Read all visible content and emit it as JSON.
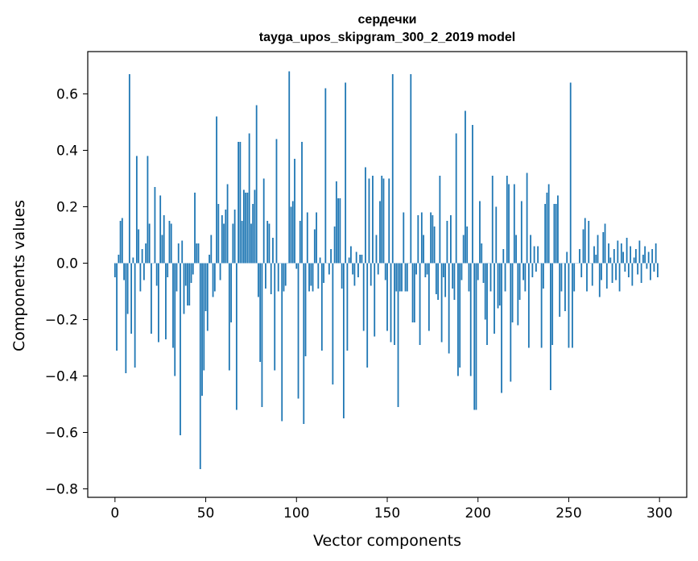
{
  "chart_data": {
    "type": "bar",
    "title": "сердечки",
    "subtitle": "tayga_upos_skipgram_300_2_2019 model",
    "xlabel": "Vector components",
    "ylabel": "Components values",
    "xlim": [
      -15,
      315
    ],
    "ylim": [
      -0.83,
      0.75
    ],
    "xticks": [
      0,
      50,
      100,
      150,
      200,
      250,
      300
    ],
    "yticks": [
      -0.8,
      -0.6,
      -0.4,
      -0.2,
      0.0,
      0.2,
      0.4,
      0.6
    ],
    "ytick_labels": [
      "−0.8",
      "−0.6",
      "−0.4",
      "−0.2",
      "0.0",
      "0.2",
      "0.4",
      "0.6"
    ],
    "xtick_labels": [
      "0",
      "50",
      "100",
      "150",
      "200",
      "250",
      "300"
    ],
    "bar_color": "#1f77b4",
    "grid": false,
    "categories_range": [
      0,
      299
    ],
    "values": [
      -0.05,
      -0.31,
      0.03,
      0.15,
      0.16,
      -0.06,
      -0.39,
      -0.18,
      0.67,
      -0.25,
      0.02,
      -0.37,
      0.38,
      0.12,
      -0.1,
      0.05,
      -0.06,
      0.07,
      0.38,
      0.14,
      -0.25,
      0.0,
      0.27,
      -0.08,
      -0.28,
      0.24,
      0.1,
      0.17,
      -0.27,
      -0.05,
      0.15,
      0.14,
      -0.3,
      -0.4,
      -0.1,
      0.07,
      -0.61,
      0.08,
      -0.18,
      -0.08,
      -0.15,
      -0.15,
      -0.07,
      -0.04,
      0.25,
      0.07,
      0.07,
      -0.73,
      -0.47,
      -0.38,
      -0.17,
      -0.24,
      0.03,
      0.1,
      -0.12,
      -0.1,
      0.52,
      0.21,
      -0.06,
      0.17,
      0.14,
      0.19,
      0.28,
      -0.38,
      -0.21,
      0.14,
      0.19,
      -0.52,
      0.43,
      0.43,
      0.15,
      0.26,
      0.25,
      0.25,
      0.46,
      0.14,
      0.21,
      0.26,
      0.56,
      -0.12,
      -0.35,
      -0.51,
      0.3,
      -0.09,
      0.15,
      0.14,
      -0.11,
      0.09,
      -0.38,
      0.44,
      -0.1,
      0.0,
      -0.56,
      -0.1,
      -0.08,
      0.0,
      0.68,
      0.2,
      0.22,
      0.37,
      -0.02,
      -0.48,
      0.15,
      0.43,
      -0.57,
      -0.33,
      0.18,
      -0.1,
      -0.08,
      -0.1,
      0.12,
      0.18,
      -0.09,
      0.02,
      -0.31,
      -0.07,
      0.62,
      0.0,
      -0.04,
      0.05,
      -0.43,
      0.13,
      0.29,
      0.23,
      0.23,
      -0.09,
      -0.55,
      0.64,
      -0.31,
      0.02,
      0.06,
      -0.04,
      -0.08,
      0.04,
      -0.05,
      0.03,
      0.03,
      -0.24,
      0.34,
      -0.37,
      0.3,
      -0.08,
      0.31,
      -0.26,
      0.1,
      -0.04,
      0.22,
      0.31,
      0.3,
      -0.06,
      -0.24,
      0.3,
      -0.28,
      0.67,
      -0.29,
      -0.1,
      -0.51,
      -0.1,
      -0.1,
      0.18,
      -0.1,
      -0.1,
      0.0,
      0.67,
      -0.21,
      -0.21,
      -0.04,
      0.17,
      -0.29,
      0.18,
      0.1,
      -0.05,
      -0.04,
      -0.24,
      0.18,
      0.17,
      0.13,
      -0.11,
      -0.13,
      0.31,
      -0.28,
      -0.05,
      -0.12,
      0.15,
      -0.32,
      0.17,
      -0.09,
      -0.13,
      0.46,
      -0.4,
      -0.37,
      -0.06,
      0.1,
      0.54,
      0.13,
      -0.1,
      -0.4,
      0.49,
      -0.52,
      -0.52,
      -0.06,
      0.22,
      0.07,
      -0.07,
      -0.2,
      -0.29,
      0.0,
      -0.1,
      0.31,
      -0.25,
      0.2,
      -0.16,
      -0.15,
      -0.46,
      0.05,
      -0.1,
      0.31,
      0.28,
      -0.42,
      -0.21,
      0.28,
      0.1,
      -0.22,
      -0.13,
      0.22,
      -0.06,
      -0.1,
      0.32,
      -0.3,
      0.1,
      -0.05,
      0.06,
      -0.03,
      0.06,
      0.0,
      -0.3,
      -0.09,
      0.21,
      0.25,
      0.28,
      -0.45,
      -0.29,
      0.21,
      0.21,
      0.24,
      -0.19,
      -0.1,
      0.0,
      -0.17,
      0.04,
      -0.3,
      0.64,
      -0.3,
      -0.1,
      0.0,
      0.0,
      0.05,
      -0.05,
      0.12,
      0.16,
      -0.1,
      0.15,
      0.0,
      -0.08,
      0.06,
      0.03,
      0.1,
      -0.12,
      -0.06,
      0.11,
      0.14,
      -0.09,
      0.07,
      0.02,
      -0.07,
      0.05,
      -0.06,
      0.08,
      -0.1,
      0.07,
      0.04,
      -0.03,
      0.09,
      -0.05,
      0.06,
      -0.08,
      0.02,
      0.05,
      -0.04,
      0.08,
      -0.07,
      0.03,
      0.06,
      -0.02,
      0.04,
      -0.06,
      0.05,
      -0.03,
      0.07,
      -0.05
    ]
  }
}
